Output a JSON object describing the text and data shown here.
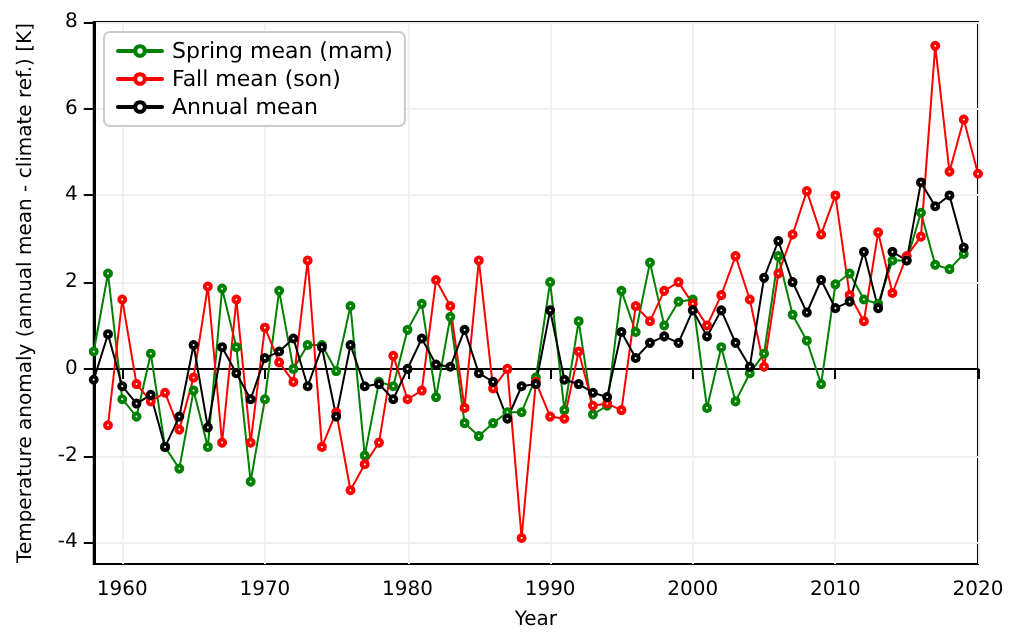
{
  "chart_data": {
    "type": "line",
    "xlabel": "Year",
    "ylabel": "Temperature anomaly (annual mean - climate ref.) [K]",
    "xlim": [
      1958,
      2020
    ],
    "xticks": [
      1960,
      1970,
      1980,
      1990,
      2000,
      2010,
      2020
    ],
    "ylim": [
      -4.5,
      8
    ],
    "yticks": [
      -4,
      -2,
      0,
      2,
      4,
      6,
      8
    ],
    "grid": true,
    "legend": "top left",
    "marker": "circle",
    "line_style": "solid",
    "series": [
      {
        "name": "Spring mean (mam)",
        "color": "#008000",
        "x": [
          1958,
          1959,
          1960,
          1961,
          1962,
          1963,
          1964,
          1965,
          1966,
          1967,
          1968,
          1969,
          1970,
          1971,
          1972,
          1973,
          1974,
          1975,
          1976,
          1977,
          1978,
          1979,
          1980,
          1981,
          1982,
          1983,
          1984,
          1985,
          1986,
          1987,
          1988,
          1989,
          1990,
          1991,
          1992,
          1993,
          1994,
          1995,
          1996,
          1997,
          1998,
          1999,
          2000,
          2001,
          2002,
          2003,
          2004,
          2005,
          2006,
          2007,
          2008,
          2009,
          2010,
          2011,
          2012,
          2013,
          2014,
          2015,
          2016,
          2017,
          2018,
          2019
        ],
        "values": [
          0.4,
          2.2,
          -0.7,
          -1.1,
          0.35,
          -1.8,
          -2.3,
          -0.5,
          -1.8,
          1.85,
          0.5,
          -2.6,
          -0.7,
          1.8,
          0,
          0.55,
          0.55,
          -0.05,
          1.45,
          -2.0,
          -0.3,
          -0.4,
          0.9,
          1.5,
          -0.65,
          1.2,
          -1.25,
          -1.55,
          -1.25,
          -1.0,
          -1.0,
          -0.2,
          2.0,
          -0.95,
          1.1,
          -1.05,
          -0.85,
          1.8,
          0.85,
          2.45,
          1.0,
          1.55,
          1.6,
          -0.9,
          0.5,
          -0.75,
          -0.1,
          0.35,
          2.6,
          1.25,
          0.65,
          -0.35,
          1.95,
          2.2,
          1.6,
          1.5,
          2.5,
          2.5,
          3.6,
          2.4,
          2.3,
          2.65
        ]
      },
      {
        "name": "Fall mean (son)",
        "color": "#ff0000",
        "x": [
          1959,
          1960,
          1961,
          1962,
          1963,
          1964,
          1965,
          1966,
          1967,
          1968,
          1969,
          1970,
          1971,
          1972,
          1973,
          1974,
          1975,
          1976,
          1977,
          1978,
          1979,
          1980,
          1981,
          1982,
          1983,
          1984,
          1985,
          1986,
          1987,
          1988,
          1989,
          1990,
          1991,
          1992,
          1993,
          1994,
          1995,
          1996,
          1997,
          1998,
          1999,
          2000,
          2001,
          2002,
          2003,
          2004,
          2005,
          2006,
          2007,
          2008,
          2009,
          2010,
          2011,
          2012,
          2013,
          2014,
          2015,
          2016,
          2017,
          2018,
          2019,
          2020
        ],
        "values": [
          -1.3,
          1.6,
          -0.35,
          -0.75,
          -0.55,
          -1.4,
          -0.2,
          1.9,
          -1.7,
          1.6,
          -1.7,
          0.95,
          0.15,
          -0.3,
          2.5,
          -1.8,
          -1.0,
          -2.8,
          -2.2,
          -1.7,
          0.3,
          -0.7,
          -0.5,
          2.05,
          1.45,
          -0.9,
          2.5,
          -0.45,
          0.0,
          -3.9,
          -0.3,
          -1.1,
          -1.15,
          0.4,
          -0.85,
          -0.8,
          -0.95,
          1.45,
          1.1,
          1.8,
          2.0,
          1.5,
          1.0,
          1.7,
          2.6,
          1.6,
          0.05,
          2.2,
          3.1,
          4.1,
          3.1,
          4.0,
          1.7,
          1.1,
          3.15,
          1.75,
          2.6,
          3.05,
          7.45,
          4.55,
          5.75,
          4.5
        ]
      },
      {
        "name": "Annual mean",
        "color": "#000000",
        "x": [
          1958,
          1959,
          1960,
          1961,
          1962,
          1963,
          1964,
          1965,
          1966,
          1967,
          1968,
          1969,
          1970,
          1971,
          1972,
          1973,
          1974,
          1975,
          1976,
          1977,
          1978,
          1979,
          1980,
          1981,
          1982,
          1983,
          1984,
          1985,
          1986,
          1987,
          1988,
          1989,
          1990,
          1991,
          1992,
          1993,
          1994,
          1995,
          1996,
          1997,
          1998,
          1999,
          2000,
          2001,
          2002,
          2003,
          2004,
          2005,
          2006,
          2007,
          2008,
          2009,
          2010,
          2011,
          2012,
          2013,
          2014,
          2015,
          2016,
          2017,
          2018,
          2019
        ],
        "values": [
          -0.25,
          0.8,
          -0.4,
          -0.8,
          -0.6,
          -1.8,
          -1.1,
          0.55,
          -1.35,
          0.5,
          -0.1,
          -0.7,
          0.25,
          0.4,
          0.7,
          -0.4,
          0.5,
          -1.1,
          0.55,
          -0.4,
          -0.35,
          -0.7,
          0,
          0.7,
          0.1,
          0.05,
          0.9,
          -0.1,
          -0.3,
          -1.15,
          -0.4,
          -0.35,
          1.35,
          -0.25,
          -0.35,
          -0.55,
          -0.65,
          0.85,
          0.25,
          0.6,
          0.75,
          0.6,
          1.35,
          0.75,
          1.35,
          0.6,
          0.05,
          2.1,
          2.95,
          2.0,
          1.3,
          2.05,
          1.4,
          1.55,
          2.7,
          1.4,
          2.7,
          2.5,
          4.3,
          3.75,
          4.0,
          2.8
        ]
      }
    ]
  }
}
